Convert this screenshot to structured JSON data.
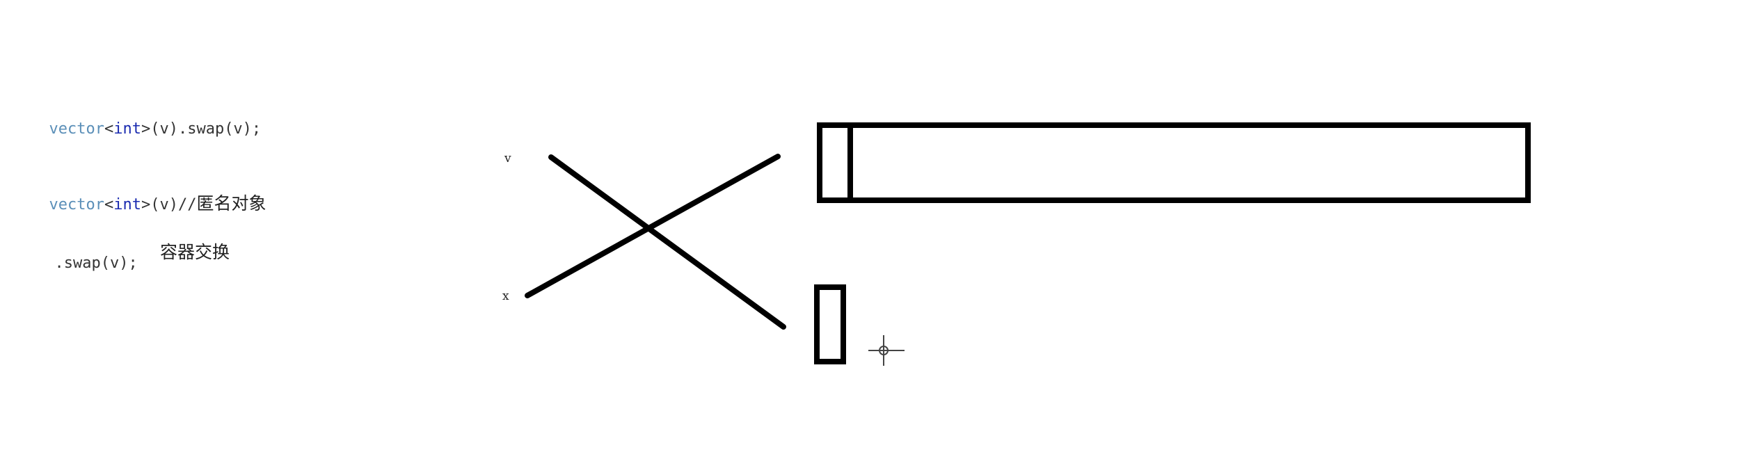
{
  "code": {
    "line1": {
      "type_word": "vector",
      "open": "<",
      "int_word": "int",
      "rest": ">(v).swap(v);"
    },
    "line2": {
      "type_word": "vector",
      "open": "<",
      "int_word": "int",
      "rest": ">(v)//",
      "comment": "匿名对象"
    },
    "line3": {
      "text": ".swap(v);",
      "note": "容器交换"
    }
  },
  "diagram": {
    "labels": {
      "v": "v",
      "x": "x"
    },
    "stroke_color": "#000000"
  }
}
